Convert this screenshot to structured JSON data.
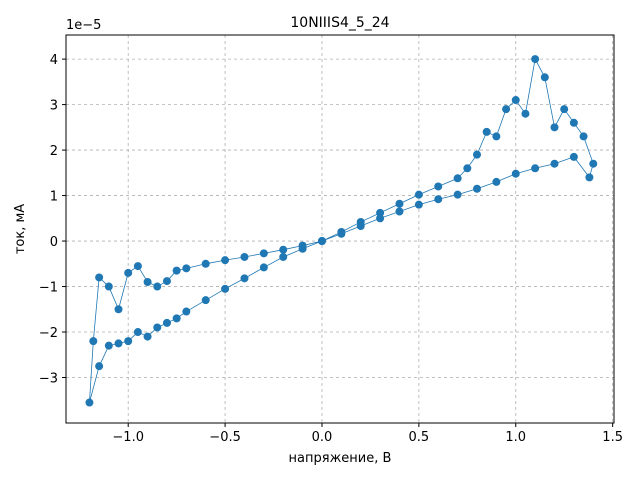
{
  "chart_data": {
    "type": "line",
    "title": "10NIIIS4_5_24",
    "x_label": "напряжение, В",
    "y_label": "ток, мА",
    "y_offset_label": "1e−5",
    "x": [
      0,
      0.1,
      0.2,
      0.3,
      0.4,
      0.5,
      0.6,
      0.7,
      0.75,
      0.8,
      0.85,
      0.9,
      0.95,
      1.0,
      1.05,
      1.1,
      1.15,
      1.2,
      1.25,
      1.3,
      1.35,
      1.4,
      1.38,
      1.3,
      1.2,
      1.1,
      1.0,
      0.9,
      0.8,
      0.7,
      0.6,
      0.5,
      0.4,
      0.3,
      0.2,
      0.1,
      0,
      -0.1,
      -0.2,
      -0.3,
      -0.4,
      -0.5,
      -0.6,
      -0.7,
      -0.75,
      -0.8,
      -0.85,
      -0.9,
      -0.95,
      -1.0,
      -1.05,
      -1.1,
      -1.15,
      -1.2,
      -1.18,
      -1.15,
      -1.1,
      -1.05,
      -1.0,
      -0.95,
      -0.9,
      -0.85,
      -0.8,
      -0.75,
      -0.7,
      -0.6,
      -0.5,
      -0.4,
      -0.3,
      -0.2,
      -0.1,
      0
    ],
    "series": [
      {
        "name": "ток",
        "color": "#1f77b4",
        "values": [
          0,
          0.2,
          0.42,
          0.62,
          0.82,
          1.02,
          1.2,
          1.38,
          1.6,
          1.9,
          2.4,
          2.3,
          2.9,
          3.1,
          2.8,
          4.0,
          3.6,
          2.5,
          2.9,
          2.6,
          2.3,
          1.7,
          1.4,
          1.85,
          1.7,
          1.6,
          1.48,
          1.3,
          1.15,
          1.02,
          0.92,
          0.8,
          0.65,
          0.5,
          0.33,
          0.16,
          0,
          -0.17,
          -0.35,
          -0.58,
          -0.82,
          -1.05,
          -1.3,
          -1.55,
          -1.7,
          -1.8,
          -1.9,
          -2.1,
          -2.0,
          -2.2,
          -2.25,
          -2.3,
          -2.75,
          -3.55,
          -2.2,
          -0.8,
          -1.0,
          -1.5,
          -0.7,
          -0.55,
          -0.9,
          -1.0,
          -0.88,
          -0.65,
          -0.6,
          -0.5,
          -0.42,
          -0.35,
          -0.27,
          -0.19,
          -0.1,
          0
        ]
      }
    ],
    "xlim": [
      -1.321,
      1.507
    ],
    "ylim": [
      -4.0,
      4.53
    ],
    "xticks": [
      {
        "value": -1.0,
        "label": "−1.0"
      },
      {
        "value": -0.5,
        "label": "−0.5"
      },
      {
        "value": 0.0,
        "label": "0.0"
      },
      {
        "value": 0.5,
        "label": "0.5"
      },
      {
        "value": 1.0,
        "label": "1.0"
      },
      {
        "value": 1.5,
        "label": "1.5"
      }
    ],
    "yticks": [
      {
        "value": -3,
        "label": "−3"
      },
      {
        "value": -2,
        "label": "−2"
      },
      {
        "value": -1,
        "label": "−1"
      },
      0,
      1,
      2,
      3,
      4
    ],
    "grid": true
  }
}
